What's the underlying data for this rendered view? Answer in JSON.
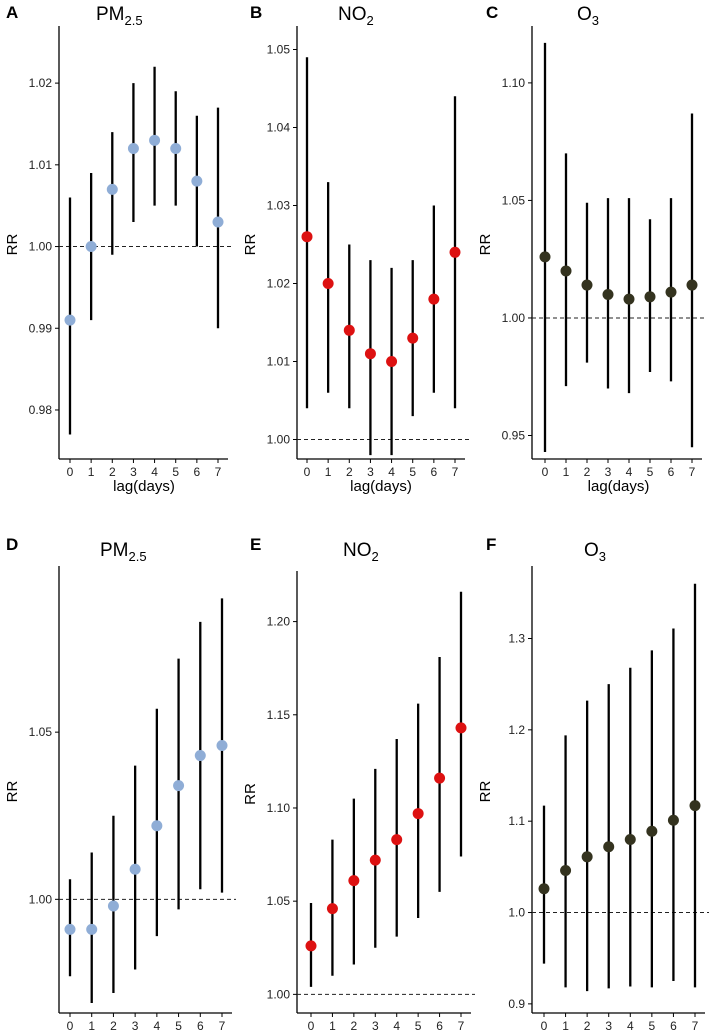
{
  "chart_data": [
    {
      "panel": "A",
      "type": "scatter",
      "title_main": "PM",
      "title_sub": "2.5",
      "xlabel": "lag(days)",
      "ylabel": "RR",
      "color": "#8fadd6",
      "x": [
        0,
        1,
        2,
        3,
        4,
        5,
        6,
        7
      ],
      "x_tick_labels": [
        "0",
        "1",
        "2",
        "3",
        "4",
        "5",
        "6",
        "7"
      ],
      "estimate": [
        0.991,
        1.0,
        1.007,
        1.012,
        1.013,
        1.012,
        1.008,
        1.003
      ],
      "lower": [
        0.977,
        0.991,
        0.999,
        1.003,
        1.005,
        1.005,
        1.0,
        0.99
      ],
      "upper": [
        1.006,
        1.009,
        1.014,
        1.02,
        1.022,
        1.019,
        1.016,
        1.017
      ],
      "ylim": [
        0.974,
        1.0265
      ],
      "y_ticks": [
        0.98,
        0.99,
        1.0,
        1.01,
        1.02
      ],
      "y_tick_labels": [
        "0.98",
        "0.99",
        "1.00",
        "1.01",
        "1.02"
      ],
      "reference_line": 1.0
    },
    {
      "panel": "B",
      "type": "scatter",
      "title_main": "NO",
      "title_sub": "2",
      "xlabel": "lag(days)",
      "ylabel": "RR",
      "color": "#dd1111",
      "x": [
        0,
        1,
        2,
        3,
        4,
        5,
        6,
        7
      ],
      "x_tick_labels": [
        "0",
        "1",
        "2",
        "3",
        "4",
        "5",
        "6",
        "7"
      ],
      "estimate": [
        1.026,
        1.02,
        1.014,
        1.011,
        1.01,
        1.013,
        1.018,
        1.024
      ],
      "lower": [
        1.004,
        1.006,
        1.004,
        0.998,
        0.998,
        1.003,
        1.006,
        1.004
      ],
      "upper": [
        1.049,
        1.033,
        1.025,
        1.023,
        1.022,
        1.023,
        1.03,
        1.044
      ],
      "ylim": [
        0.9975,
        1.0525
      ],
      "y_ticks": [
        1.0,
        1.01,
        1.02,
        1.03,
        1.04,
        1.05
      ],
      "y_tick_labels": [
        "1.00",
        "1.01",
        "1.02",
        "1.03",
        "1.04",
        "1.05"
      ],
      "reference_line": 1.0
    },
    {
      "panel": "C",
      "type": "scatter",
      "title_main": "O",
      "title_sub": "3",
      "xlabel": "lag(days)",
      "ylabel": "RR",
      "color": "#34331f",
      "x": [
        0,
        1,
        2,
        3,
        4,
        5,
        6,
        7
      ],
      "x_tick_labels": [
        "0",
        "1",
        "2",
        "3",
        "4",
        "5",
        "6",
        "7"
      ],
      "estimate": [
        1.026,
        1.02,
        1.014,
        1.01,
        1.008,
        1.009,
        1.011,
        1.014
      ],
      "lower": [
        0.943,
        0.971,
        0.981,
        0.97,
        0.968,
        0.977,
        0.973,
        0.945
      ],
      "upper": [
        1.117,
        1.07,
        1.049,
        1.051,
        1.051,
        1.042,
        1.051,
        1.087
      ],
      "ylim": [
        0.94,
        1.1225
      ],
      "y_ticks": [
        0.95,
        1.0,
        1.05,
        1.1
      ],
      "y_tick_labels": [
        "0.95",
        "1.00",
        "1.05",
        "1.10"
      ],
      "reference_line": 1.0
    },
    {
      "panel": "D",
      "type": "scatter",
      "title_main": "PM",
      "title_sub": "2.5",
      "xlabel": "lag(days)",
      "ylabel": "RR",
      "color": "#8fadd6",
      "x": [
        0,
        1,
        2,
        3,
        4,
        5,
        6,
        7
      ],
      "x_tick_labels": [
        "0",
        "1",
        "2",
        "3",
        "4",
        "5",
        "6",
        "7"
      ],
      "estimate": [
        0.991,
        0.991,
        0.998,
        1.009,
        1.022,
        1.034,
        1.043,
        1.046
      ],
      "lower": [
        0.977,
        0.969,
        0.972,
        0.979,
        0.989,
        0.997,
        1.003,
        1.002
      ],
      "upper": [
        1.006,
        1.014,
        1.025,
        1.04,
        1.057,
        1.072,
        1.083,
        1.09
      ],
      "ylim": [
        0.966,
        1.0985
      ],
      "y_ticks": [
        1.0,
        1.05
      ],
      "y_tick_labels": [
        "1.00",
        "1.05"
      ],
      "reference_line": 1.0
    },
    {
      "panel": "E",
      "type": "scatter",
      "title_main": "NO",
      "title_sub": "2",
      "xlabel": "lag(days)",
      "ylabel": "RR",
      "color": "#dd1111",
      "x": [
        0,
        1,
        2,
        3,
        4,
        5,
        6,
        7
      ],
      "x_tick_labels": [
        "0",
        "1",
        "2",
        "3",
        "4",
        "5",
        "6",
        "7"
      ],
      "estimate": [
        1.026,
        1.046,
        1.061,
        1.072,
        1.083,
        1.097,
        1.116,
        1.143
      ],
      "lower": [
        1.004,
        1.01,
        1.016,
        1.025,
        1.031,
        1.041,
        1.055,
        1.074
      ],
      "upper": [
        1.049,
        1.083,
        1.105,
        1.121,
        1.137,
        1.156,
        1.181,
        1.216
      ],
      "ylim": [
        0.99,
        1.225
      ],
      "y_ticks": [
        1.0,
        1.05,
        1.1,
        1.15,
        1.2
      ],
      "y_tick_labels": [
        "1.00",
        "1.05",
        "1.10",
        "1.15",
        "1.20"
      ],
      "reference_line": 1.0
    },
    {
      "panel": "F",
      "type": "scatter",
      "title_main": "O",
      "title_sub": "3",
      "xlabel": "lag(days)",
      "ylabel": "RR",
      "color": "#34331f",
      "x": [
        0,
        1,
        2,
        3,
        4,
        5,
        6,
        7
      ],
      "x_tick_labels": [
        "0",
        "1",
        "2",
        "3",
        "4",
        "5",
        "6",
        "7"
      ],
      "estimate": [
        1.026,
        1.046,
        1.061,
        1.072,
        1.08,
        1.089,
        1.101,
        1.117
      ],
      "lower": [
        0.944,
        0.918,
        0.914,
        0.917,
        0.919,
        0.918,
        0.925,
        0.918
      ],
      "upper": [
        1.117,
        1.194,
        1.232,
        1.25,
        1.268,
        1.287,
        1.311,
        1.36
      ],
      "ylim": [
        0.89,
        1.375
      ],
      "y_ticks": [
        0.9,
        1.0,
        1.1,
        1.2,
        1.3
      ],
      "y_tick_labels": [
        "0.9",
        "1.0",
        "1.1",
        "1.2",
        "1.3"
      ],
      "reference_line": 1.0
    }
  ]
}
